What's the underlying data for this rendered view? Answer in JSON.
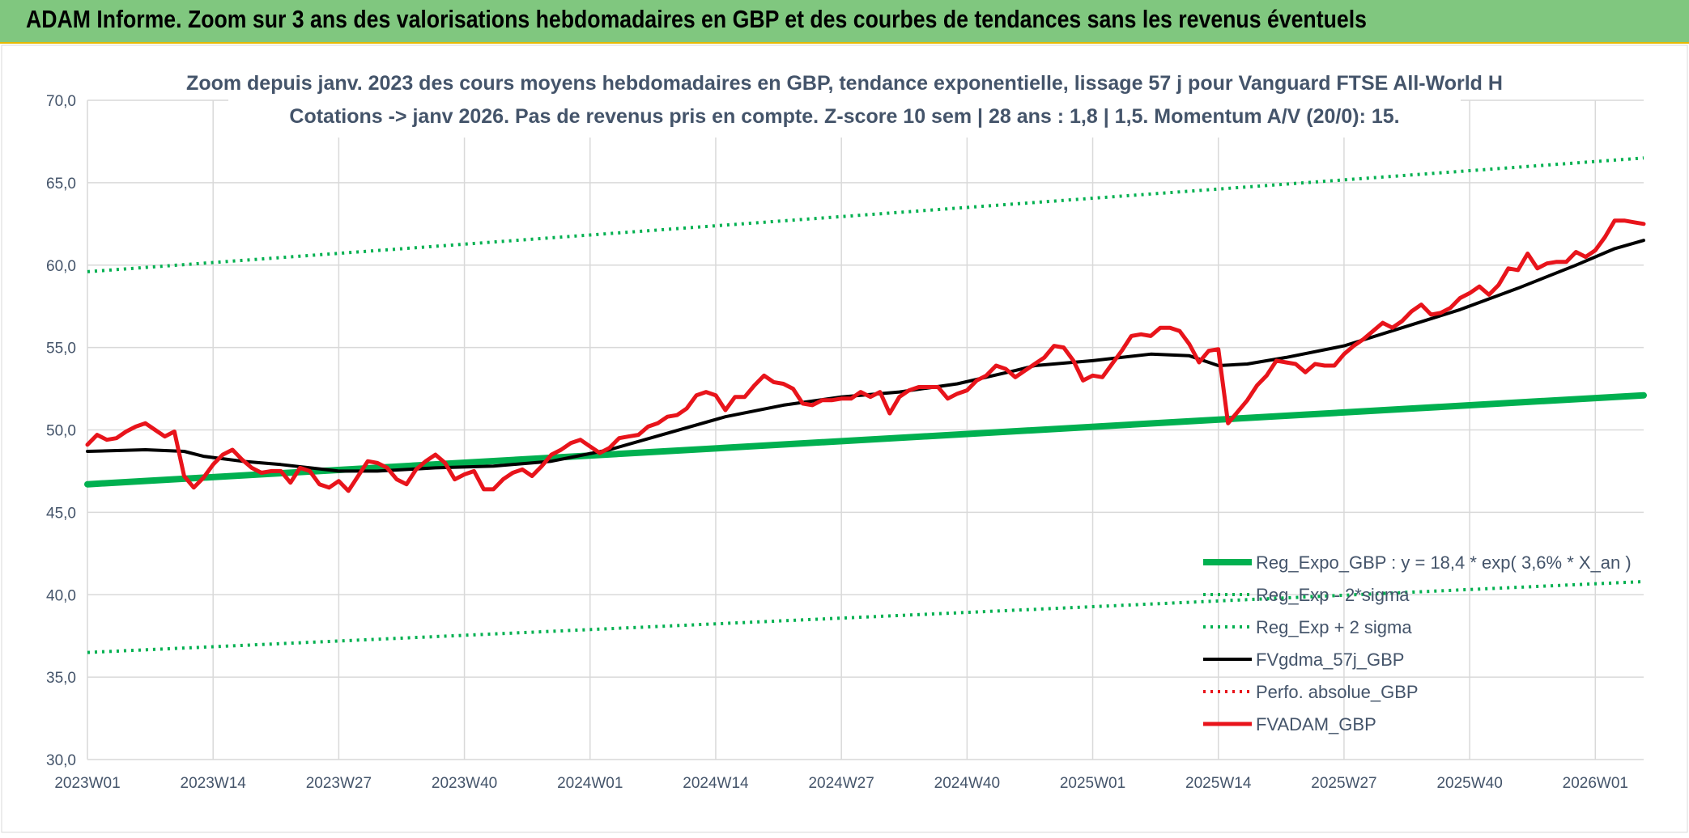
{
  "banner": {
    "title": "ADAM Informe. Zoom sur 3 ans des valorisations hebdomadaires en GBP et des courbes de tendances sans les revenus éventuels"
  },
  "chart_data": {
    "type": "line",
    "title_lines": [
      "Zoom depuis janv. 2023 des cours moyens hebdomadaires en GBP, tendance exponentielle, lissage 57 j pour Vanguard FTSE All-World H",
      "Cotations -> janv 2026. Pas de revenus pris en compte. Z-score 10 sem | 28 ans : 1,8 | 1,5. Momentum A/V (20/0): 15."
    ],
    "xlabel": "",
    "ylabel": "",
    "ylim": [
      30,
      70
    ],
    "y_ticks": [
      "70,0",
      "65,0",
      "60,0",
      "55,0",
      "50,0",
      "45,0",
      "40,0",
      "35,0",
      "30,0"
    ],
    "y_tick_values": [
      70,
      65,
      60,
      55,
      50,
      45,
      40,
      35,
      30
    ],
    "x_ticks": [
      "2023W01",
      "2023W14",
      "2023W27",
      "2023W40",
      "2024W01",
      "2024W14",
      "2024W27",
      "2024W40",
      "2025W01",
      "2025W14",
      "2025W27",
      "2025W40",
      "2026W01"
    ],
    "x_tick_index": [
      0,
      13,
      26,
      39,
      52,
      65,
      78,
      91,
      104,
      117,
      130,
      143,
      156
    ],
    "x_range": [
      0,
      161
    ],
    "grid": true,
    "legend_position": "bottom-right",
    "series": [
      {
        "name": "Reg_Expo_GBP : y = 18,4 * exp( 3,6% *  X_an )",
        "color": "#00b050",
        "style": "solid-thick",
        "x": [
          0,
          161
        ],
        "values": [
          46.7,
          52.1
        ]
      },
      {
        "name": "Reg_Exp - 2*sigma",
        "color": "#00b050",
        "style": "dotted",
        "x": [
          0,
          161
        ],
        "values": [
          36.5,
          40.8
        ]
      },
      {
        "name": "Reg_Exp + 2 sigma",
        "color": "#00b050",
        "style": "dotted",
        "x": [
          0,
          161
        ],
        "values": [
          59.6,
          66.5
        ]
      },
      {
        "name": "FVgdma_57j_GBP",
        "color": "#000000",
        "style": "solid",
        "x": [
          0,
          6,
          10,
          12,
          16,
          20,
          26,
          30,
          36,
          42,
          48,
          54,
          60,
          66,
          72,
          78,
          84,
          90,
          96,
          98,
          104,
          110,
          114,
          117,
          120,
          124,
          130,
          136,
          142,
          148,
          154,
          158,
          161
        ],
        "values": [
          48.7,
          48.8,
          48.7,
          48.4,
          48.1,
          47.9,
          47.5,
          47.5,
          47.7,
          47.8,
          48.1,
          48.8,
          49.8,
          50.8,
          51.5,
          52.0,
          52.3,
          52.8,
          53.6,
          53.9,
          54.2,
          54.6,
          54.5,
          53.9,
          54.0,
          54.4,
          55.1,
          56.2,
          57.3,
          58.6,
          60.0,
          61.0,
          61.5
        ]
      },
      {
        "name": "Perfo. absolue_GBP",
        "color": "#e8141b",
        "style": "dotted",
        "x": [],
        "values": []
      },
      {
        "name": "FVADAM_GBP",
        "color": "#e8141b",
        "style": "solid-thick",
        "x": [
          0,
          1,
          2,
          3,
          4,
          5,
          6,
          7,
          8,
          9,
          10,
          11,
          12,
          13,
          14,
          15,
          16,
          17,
          18,
          19,
          20,
          21,
          22,
          23,
          24,
          25,
          26,
          27,
          28,
          29,
          30,
          31,
          32,
          33,
          34,
          35,
          36,
          37,
          38,
          39,
          40,
          41,
          42,
          43,
          44,
          45,
          46,
          47,
          48,
          49,
          50,
          51,
          52,
          53,
          54,
          55,
          56,
          57,
          58,
          59,
          60,
          61,
          62,
          63,
          64,
          65,
          66,
          67,
          68,
          69,
          70,
          71,
          72,
          73,
          74,
          75,
          76,
          77,
          78,
          79,
          80,
          81,
          82,
          83,
          84,
          85,
          86,
          87,
          88,
          89,
          90,
          91,
          92,
          93,
          94,
          95,
          96,
          97,
          98,
          99,
          100,
          101,
          102,
          103,
          104,
          105,
          106,
          107,
          108,
          109,
          110,
          111,
          112,
          113,
          114,
          115,
          116,
          117,
          118,
          119,
          120,
          121,
          122,
          123,
          124,
          125,
          126,
          127,
          128,
          129,
          130,
          131,
          132,
          133,
          134,
          135,
          136,
          137,
          138,
          139,
          140,
          141,
          142,
          143,
          144,
          145,
          146,
          147,
          148,
          149,
          150,
          151,
          152,
          153,
          154,
          155,
          156,
          157,
          158,
          159,
          160,
          161
        ],
        "values": [
          49.1,
          49.7,
          49.4,
          49.5,
          49.9,
          50.2,
          50.4,
          50.0,
          49.6,
          49.9,
          47.2,
          46.5,
          47.1,
          47.9,
          48.5,
          48.8,
          48.2,
          47.7,
          47.4,
          47.5,
          47.5,
          46.8,
          47.7,
          47.5,
          46.7,
          46.5,
          46.9,
          46.3,
          47.2,
          48.1,
          48.0,
          47.7,
          47.0,
          46.7,
          47.6,
          48.1,
          48.5,
          48.0,
          47.0,
          47.3,
          47.5,
          46.4,
          46.4,
          47.0,
          47.4,
          47.6,
          47.2,
          47.8,
          48.5,
          48.8,
          49.2,
          49.4,
          49.0,
          48.6,
          48.9,
          49.5,
          49.6,
          49.7,
          50.2,
          50.4,
          50.8,
          50.9,
          51.3,
          52.1,
          52.3,
          52.1,
          51.2,
          52.0,
          52.0,
          52.7,
          53.3,
          52.9,
          52.8,
          52.5,
          51.6,
          51.5,
          51.8,
          51.8,
          51.9,
          51.9,
          52.3,
          52.0,
          52.3,
          51.0,
          52.0,
          52.4,
          52.6,
          52.6,
          52.6,
          51.9,
          52.2,
          52.4,
          53.0,
          53.3,
          53.9,
          53.7,
          53.2,
          53.6,
          54.0,
          54.4,
          55.1,
          55.0,
          54.2,
          53.0,
          53.3,
          53.2,
          54.0,
          54.8,
          55.7,
          55.8,
          55.7,
          56.2,
          56.2,
          56.0,
          55.2,
          54.1,
          54.8,
          54.9,
          50.4,
          51.1,
          51.8,
          52.7,
          53.3,
          54.2,
          54.1,
          54.0,
          53.5,
          54.0,
          53.9,
          53.9,
          54.6,
          55.1,
          55.5,
          56.0,
          56.5,
          56.2,
          56.6,
          57.2,
          57.6,
          57.0,
          57.1,
          57.4,
          58.0,
          58.3,
          58.7,
          58.2,
          58.8,
          59.8,
          59.7,
          60.7,
          59.8,
          60.1,
          60.2,
          60.2,
          60.8,
          60.5,
          60.9,
          61.7,
          62.7,
          62.7,
          62.6,
          62.5
        ]
      }
    ]
  }
}
